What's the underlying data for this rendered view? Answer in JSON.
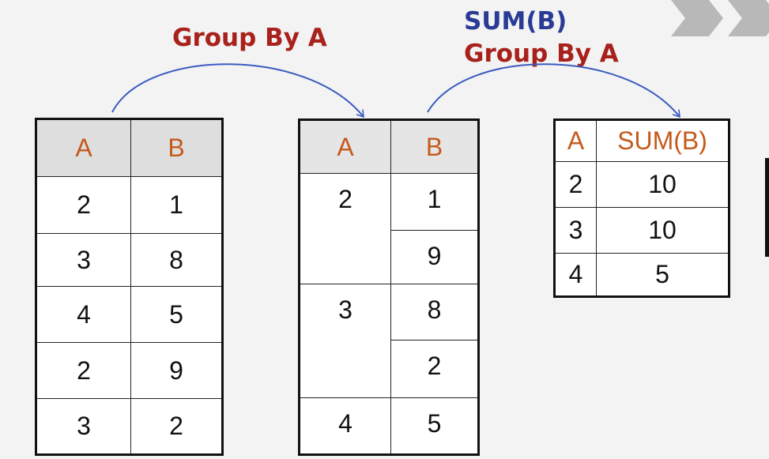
{
  "labels": {
    "group_by_1": "Group By A",
    "sum_b": "SUM(B)",
    "group_by_2": "Group By A"
  },
  "table_original": {
    "headers": [
      "A",
      "B"
    ],
    "rows": [
      [
        "2",
        "1"
      ],
      [
        "3",
        "8"
      ],
      [
        "4",
        "5"
      ],
      [
        "2",
        "9"
      ],
      [
        "3",
        "2"
      ]
    ]
  },
  "table_grouped": {
    "headers": [
      "A",
      "B"
    ],
    "groups": [
      {
        "a": "2",
        "b": [
          "1",
          "9"
        ]
      },
      {
        "a": "3",
        "b": [
          "8",
          "2"
        ]
      },
      {
        "a": "4",
        "b": [
          "5"
        ]
      }
    ]
  },
  "table_result": {
    "headers": [
      "A",
      "SUM(B)"
    ],
    "rows": [
      [
        "2",
        "10"
      ],
      [
        "3",
        "10"
      ],
      [
        "4",
        "5"
      ]
    ]
  },
  "colors": {
    "label_red": "#a8211b",
    "label_blue": "#2a3b95",
    "header_text": "#c55a1c",
    "arrow": "#3b5bc0"
  },
  "icons": [
    "chevron-right-icon",
    "chevron-right-icon"
  ]
}
